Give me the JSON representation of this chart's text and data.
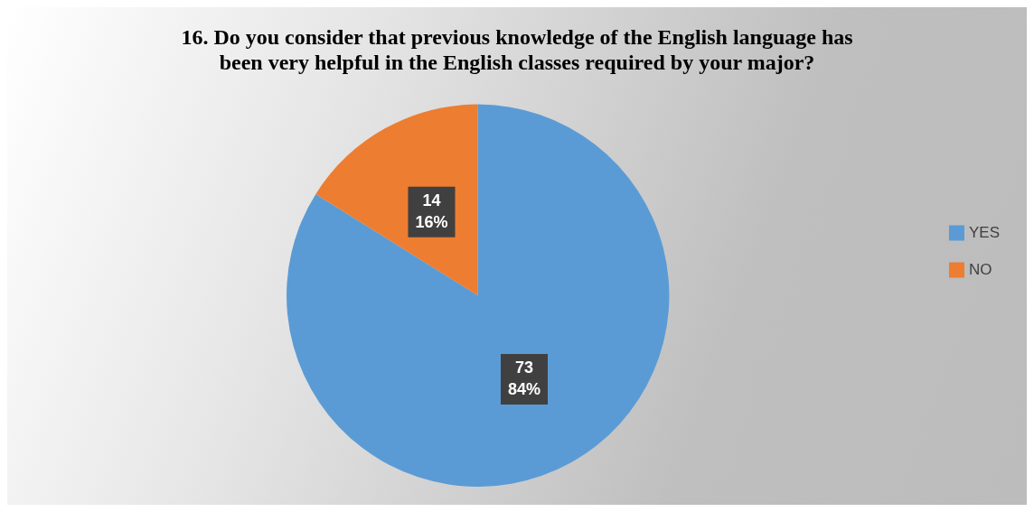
{
  "chart_data": {
    "type": "pie",
    "title": [
      "16. Do you consider that previous knowledge of the English language has",
      "been very helpful in the English classes required by your major?"
    ],
    "categories": [
      "YES",
      "NO"
    ],
    "values": [
      73,
      14
    ],
    "colors": [
      "#5b9bd5",
      "#ed7d31"
    ],
    "value_labels": [
      "73\n84%",
      "14\n16%"
    ],
    "legend": "right"
  }
}
